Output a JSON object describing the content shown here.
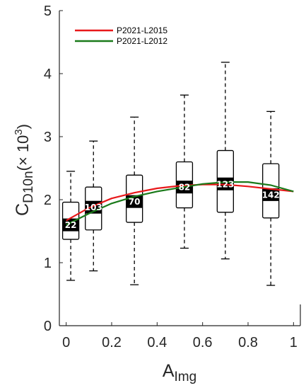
{
  "chart_data": {
    "type": "box",
    "xlabel_main": "A",
    "xlabel_sub": "Img",
    "ylabel_main": "C",
    "ylabel_sub": "D10n",
    "ylabel_unit_prefix": "(× 10",
    "ylabel_unit_exp": "3",
    "ylabel_unit_suffix": ")",
    "xlim": [
      -0.03,
      1.03
    ],
    "ylim": [
      0,
      5
    ],
    "xticks": [
      0,
      0.2,
      0.4,
      0.6,
      0.8,
      1
    ],
    "xtick_labels": [
      "0",
      "0.2",
      "0.4",
      "0.6",
      "0.8",
      "1"
    ],
    "yticks": [
      0,
      1,
      2,
      3,
      4,
      5
    ],
    "ytick_labels": [
      "0",
      "1",
      "2",
      "3",
      "4",
      "5"
    ],
    "boxes": [
      {
        "x": 0.02,
        "whisker_low": 0.72,
        "q1": 1.37,
        "median": 1.6,
        "q3": 1.96,
        "whisker_high": 2.45,
        "count": "22"
      },
      {
        "x": 0.12,
        "whisker_low": 0.87,
        "q1": 1.52,
        "median": 1.88,
        "q3": 2.2,
        "whisker_high": 2.93,
        "count": "103"
      },
      {
        "x": 0.3,
        "whisker_low": 0.65,
        "q1": 1.64,
        "median": 1.97,
        "q3": 2.39,
        "whisker_high": 3.31,
        "count": "70"
      },
      {
        "x": 0.52,
        "whisker_low": 1.23,
        "q1": 1.87,
        "median": 2.2,
        "q3": 2.6,
        "whisker_high": 3.66,
        "count": "82"
      },
      {
        "x": 0.7,
        "whisker_low": 1.06,
        "q1": 1.8,
        "median": 2.25,
        "q3": 2.78,
        "whisker_high": 4.18,
        "count": "123"
      },
      {
        "x": 0.9,
        "whisker_low": 0.64,
        "q1": 1.71,
        "median": 2.08,
        "q3": 2.57,
        "whisker_high": 3.4,
        "count": "142"
      }
    ],
    "series": [
      {
        "name": "P2021-L2015",
        "color": "#e8191b",
        "x": [
          0,
          0.1,
          0.2,
          0.3,
          0.4,
          0.5,
          0.6,
          0.7,
          0.8,
          0.9,
          1.0
        ],
        "y": [
          1.67,
          1.87,
          2.02,
          2.11,
          2.18,
          2.22,
          2.24,
          2.24,
          2.21,
          2.17,
          2.13
        ]
      },
      {
        "name": "P2021-L2012",
        "color": "#1a7a1a",
        "x": [
          0,
          0.1,
          0.2,
          0.3,
          0.4,
          0.5,
          0.6,
          0.7,
          0.8,
          0.9,
          1.0
        ],
        "y": [
          1.6,
          1.78,
          1.94,
          2.05,
          2.13,
          2.19,
          2.25,
          2.28,
          2.28,
          2.23,
          2.13
        ]
      }
    ],
    "legend_position": "top-left",
    "grid": false
  }
}
